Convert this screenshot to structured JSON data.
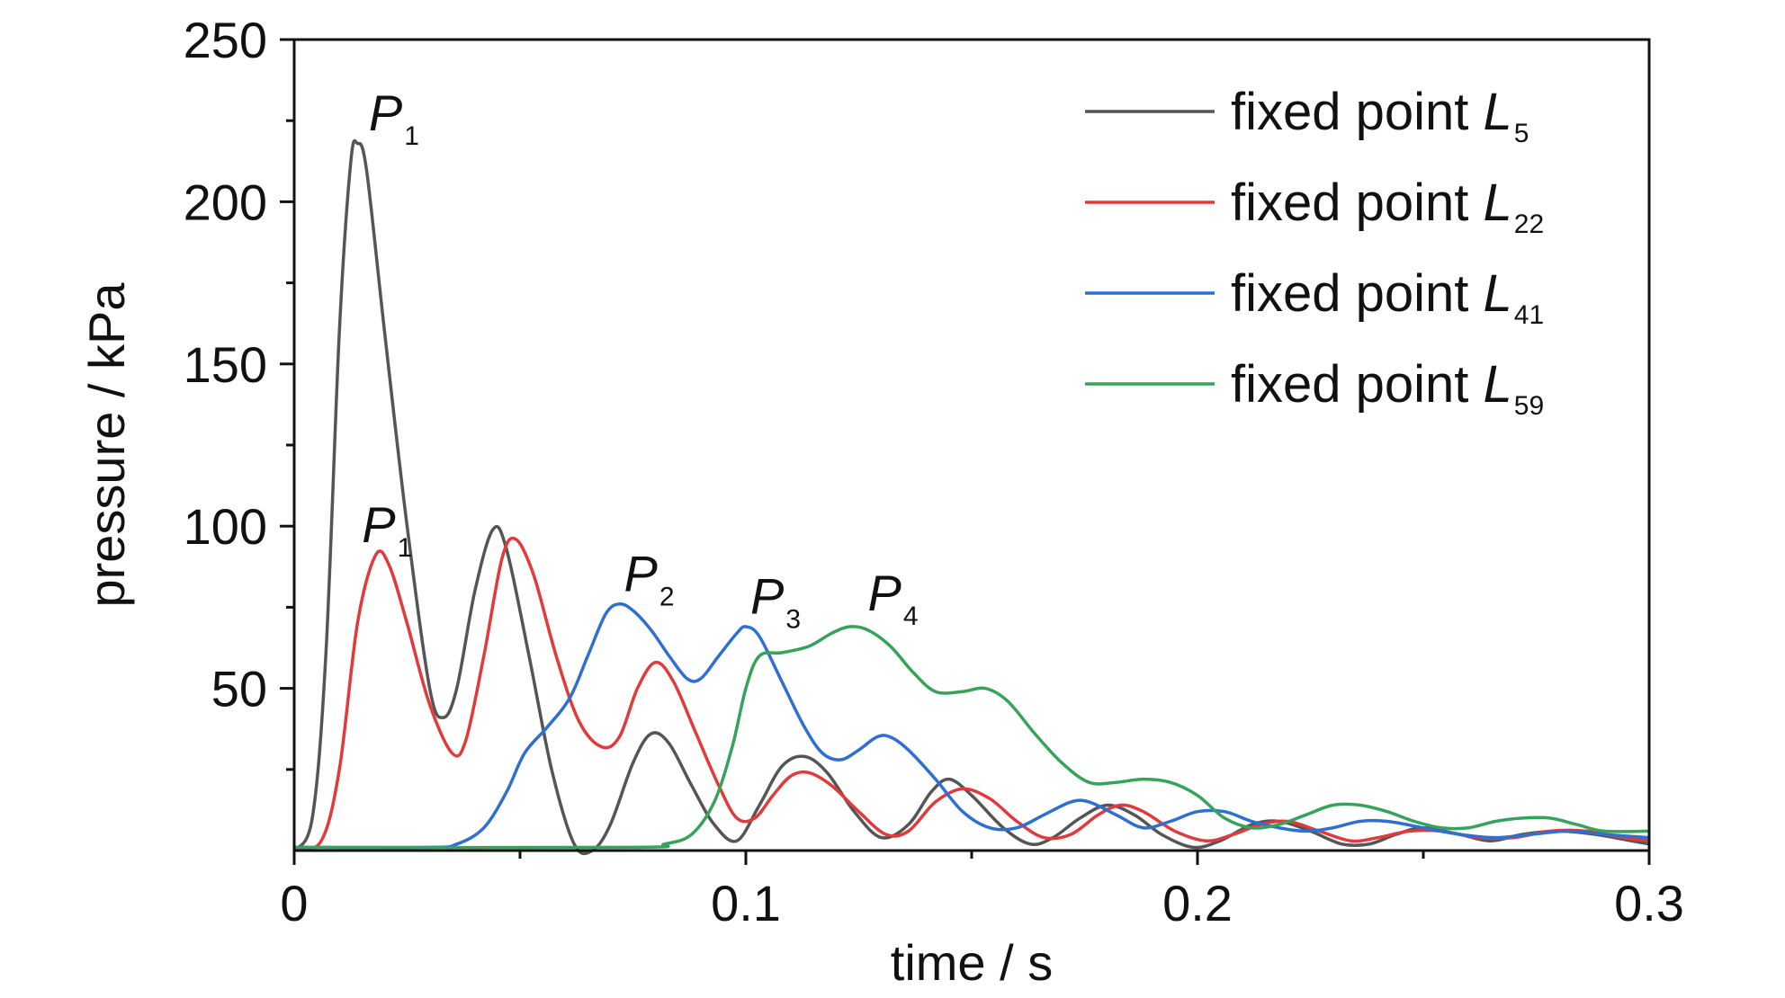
{
  "chart_data": {
    "type": "line",
    "xlabel": "time / s",
    "ylabel": "pressure / kPa",
    "xlim": [
      0,
      0.3
    ],
    "ylim": [
      0,
      250
    ],
    "x_ticks": [
      "0",
      "0.1",
      "0.2",
      "0.3"
    ],
    "y_ticks": [
      "50",
      "100",
      "150",
      "200",
      "250"
    ],
    "legend_position": "top-right",
    "series": [
      {
        "name": "fixed point L5",
        "label_main": "fixed point ",
        "label_italic": "L",
        "label_sub": "5",
        "color": "#555555",
        "points": [
          [
            0,
            0
          ],
          [
            0.004,
            10
          ],
          [
            0.007,
            60
          ],
          [
            0.01,
            160
          ],
          [
            0.0125,
            212
          ],
          [
            0.014,
            218
          ],
          [
            0.016,
            210
          ],
          [
            0.02,
            160
          ],
          [
            0.025,
            100
          ],
          [
            0.03,
            50
          ],
          [
            0.033,
            41
          ],
          [
            0.036,
            50
          ],
          [
            0.04,
            80
          ],
          [
            0.044,
            99
          ],
          [
            0.047,
            93
          ],
          [
            0.052,
            60
          ],
          [
            0.057,
            25
          ],
          [
            0.062,
            2
          ],
          [
            0.066,
            0
          ],
          [
            0.07,
            8
          ],
          [
            0.075,
            27
          ],
          [
            0.079,
            36
          ],
          [
            0.083,
            33
          ],
          [
            0.088,
            20
          ],
          [
            0.093,
            8
          ],
          [
            0.098,
            3
          ],
          [
            0.103,
            14
          ],
          [
            0.108,
            26
          ],
          [
            0.113,
            29
          ],
          [
            0.118,
            24
          ],
          [
            0.124,
            12
          ],
          [
            0.13,
            4
          ],
          [
            0.136,
            8
          ],
          [
            0.141,
            18
          ],
          [
            0.145,
            22
          ],
          [
            0.15,
            17
          ],
          [
            0.157,
            7
          ],
          [
            0.163,
            2
          ],
          [
            0.168,
            4
          ],
          [
            0.174,
            10
          ],
          [
            0.18,
            14
          ],
          [
            0.186,
            11
          ],
          [
            0.192,
            5
          ],
          [
            0.199,
            1
          ],
          [
            0.205,
            3
          ],
          [
            0.212,
            8
          ],
          [
            0.218,
            9
          ],
          [
            0.225,
            6
          ],
          [
            0.232,
            2
          ],
          [
            0.238,
            2
          ],
          [
            0.244,
            5
          ],
          [
            0.25,
            7
          ],
          [
            0.258,
            5
          ],
          [
            0.265,
            3
          ],
          [
            0.272,
            5
          ],
          [
            0.28,
            6
          ],
          [
            0.288,
            5
          ],
          [
            0.296,
            3
          ],
          [
            0.3,
            2
          ]
        ]
      },
      {
        "name": "fixed point L22",
        "label_main": "fixed point ",
        "label_italic": "L",
        "label_sub": "22",
        "color": "#e23a3a",
        "points": [
          [
            0,
            0
          ],
          [
            0.006,
            3
          ],
          [
            0.01,
            25
          ],
          [
            0.014,
            70
          ],
          [
            0.018,
            91
          ],
          [
            0.021,
            88
          ],
          [
            0.025,
            70
          ],
          [
            0.03,
            45
          ],
          [
            0.035,
            30
          ],
          [
            0.038,
            34
          ],
          [
            0.042,
            60
          ],
          [
            0.046,
            90
          ],
          [
            0.049,
            96
          ],
          [
            0.053,
            85
          ],
          [
            0.058,
            60
          ],
          [
            0.063,
            40
          ],
          [
            0.068,
            32
          ],
          [
            0.072,
            35
          ],
          [
            0.076,
            50
          ],
          [
            0.08,
            58
          ],
          [
            0.084,
            52
          ],
          [
            0.089,
            36
          ],
          [
            0.094,
            20
          ],
          [
            0.098,
            10
          ],
          [
            0.102,
            10
          ],
          [
            0.106,
            17
          ],
          [
            0.11,
            23
          ],
          [
            0.114,
            24
          ],
          [
            0.119,
            20
          ],
          [
            0.125,
            12
          ],
          [
            0.131,
            5
          ],
          [
            0.136,
            6
          ],
          [
            0.142,
            15
          ],
          [
            0.148,
            19
          ],
          [
            0.154,
            16
          ],
          [
            0.16,
            9
          ],
          [
            0.166,
            4
          ],
          [
            0.172,
            5
          ],
          [
            0.178,
            11
          ],
          [
            0.183,
            14
          ],
          [
            0.188,
            12
          ],
          [
            0.195,
            6
          ],
          [
            0.202,
            3
          ],
          [
            0.208,
            5
          ],
          [
            0.214,
            8
          ],
          [
            0.22,
            9
          ],
          [
            0.227,
            6
          ],
          [
            0.234,
            3
          ],
          [
            0.24,
            4
          ],
          [
            0.247,
            6
          ],
          [
            0.254,
            6
          ],
          [
            0.262,
            4
          ],
          [
            0.27,
            4
          ],
          [
            0.278,
            6
          ],
          [
            0.286,
            6
          ],
          [
            0.294,
            4
          ],
          [
            0.3,
            3
          ]
        ]
      },
      {
        "name": "fixed point L41",
        "label_main": "fixed point ",
        "label_italic": "L",
        "label_sub": "41",
        "color": "#2e6fd1",
        "points": [
          [
            0,
            1
          ],
          [
            0.03,
            1
          ],
          [
            0.036,
            2
          ],
          [
            0.042,
            7
          ],
          [
            0.047,
            18
          ],
          [
            0.051,
            30
          ],
          [
            0.056,
            38
          ],
          [
            0.061,
            47
          ],
          [
            0.065,
            60
          ],
          [
            0.069,
            73
          ],
          [
            0.072,
            76
          ],
          [
            0.075,
            74
          ],
          [
            0.079,
            68
          ],
          [
            0.083,
            60
          ],
          [
            0.087,
            53
          ],
          [
            0.09,
            53
          ],
          [
            0.094,
            60
          ],
          [
            0.098,
            67
          ],
          [
            0.1,
            69
          ],
          [
            0.103,
            66
          ],
          [
            0.108,
            52
          ],
          [
            0.113,
            38
          ],
          [
            0.117,
            30
          ],
          [
            0.121,
            28
          ],
          [
            0.125,
            31
          ],
          [
            0.129,
            35
          ],
          [
            0.132,
            35
          ],
          [
            0.136,
            31
          ],
          [
            0.142,
            22
          ],
          [
            0.148,
            12
          ],
          [
            0.154,
            7
          ],
          [
            0.16,
            7
          ],
          [
            0.166,
            11
          ],
          [
            0.172,
            15
          ],
          [
            0.176,
            15
          ],
          [
            0.182,
            11
          ],
          [
            0.188,
            7
          ],
          [
            0.194,
            9
          ],
          [
            0.2,
            12
          ],
          [
            0.206,
            12
          ],
          [
            0.212,
            9
          ],
          [
            0.218,
            7
          ],
          [
            0.224,
            6
          ],
          [
            0.23,
            7
          ],
          [
            0.236,
            9
          ],
          [
            0.242,
            9
          ],
          [
            0.25,
            7
          ],
          [
            0.258,
            5
          ],
          [
            0.266,
            4
          ],
          [
            0.274,
            5
          ],
          [
            0.282,
            6
          ],
          [
            0.29,
            5
          ],
          [
            0.3,
            4
          ]
        ]
      },
      {
        "name": "fixed point L59",
        "label_main": "fixed point ",
        "label_italic": "L",
        "label_sub": "59",
        "color": "#36a35c",
        "points": [
          [
            0,
            1
          ],
          [
            0.075,
            1
          ],
          [
            0.082,
            2
          ],
          [
            0.088,
            5
          ],
          [
            0.093,
            15
          ],
          [
            0.097,
            32
          ],
          [
            0.1,
            50
          ],
          [
            0.103,
            60
          ],
          [
            0.108,
            61
          ],
          [
            0.114,
            63
          ],
          [
            0.119,
            67
          ],
          [
            0.123,
            69
          ],
          [
            0.127,
            68
          ],
          [
            0.132,
            63
          ],
          [
            0.137,
            55
          ],
          [
            0.142,
            49
          ],
          [
            0.148,
            49
          ],
          [
            0.153,
            50
          ],
          [
            0.158,
            46
          ],
          [
            0.164,
            36
          ],
          [
            0.17,
            27
          ],
          [
            0.176,
            21
          ],
          [
            0.182,
            21
          ],
          [
            0.188,
            22
          ],
          [
            0.194,
            21
          ],
          [
            0.2,
            17
          ],
          [
            0.206,
            10
          ],
          [
            0.212,
            7
          ],
          [
            0.218,
            8
          ],
          [
            0.224,
            11
          ],
          [
            0.23,
            14
          ],
          [
            0.236,
            14
          ],
          [
            0.242,
            12
          ],
          [
            0.248,
            9
          ],
          [
            0.254,
            7
          ],
          [
            0.26,
            7
          ],
          [
            0.266,
            9
          ],
          [
            0.272,
            10
          ],
          [
            0.278,
            10
          ],
          [
            0.284,
            8
          ],
          [
            0.29,
            6
          ],
          [
            0.3,
            6
          ]
        ]
      }
    ],
    "annotations": [
      {
        "main": "P",
        "sub": "1",
        "x": 0.0165,
        "y": 222,
        "series": "fixed point L5"
      },
      {
        "main": "P",
        "sub": "1",
        "x": 0.015,
        "y": 95,
        "series": "fixed point L22"
      },
      {
        "main": "P",
        "sub": "2",
        "x": 0.073,
        "y": 80,
        "series": "fixed point L41"
      },
      {
        "main": "P",
        "sub": "3",
        "x": 0.101,
        "y": 73,
        "series": "fixed point L41"
      },
      {
        "main": "P",
        "sub": "4",
        "x": 0.127,
        "y": 74,
        "series": "fixed point L59"
      }
    ]
  }
}
